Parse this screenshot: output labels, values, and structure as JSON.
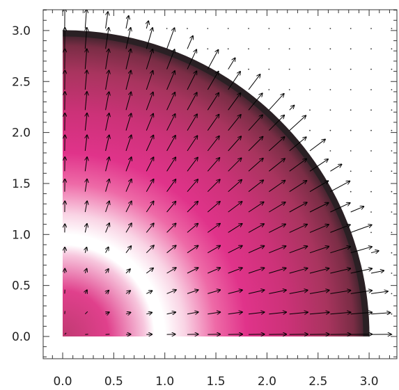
{
  "chart_data": {
    "type": "heatmap",
    "subtype": "quarter-disk color field with vector (arrow) overlay",
    "title": "",
    "xlabel": "",
    "ylabel": "",
    "xlim": [
      -0.2,
      3.25
    ],
    "ylim": [
      -0.2,
      3.25
    ],
    "x_ticks": [
      "0.0",
      "0.5",
      "1.0",
      "1.5",
      "2.0",
      "2.5",
      "3.0"
    ],
    "y_ticks": [
      "0.0",
      "0.5",
      "1.0",
      "1.5",
      "2.0",
      "2.5",
      "3.0"
    ],
    "x_tick_values": [
      0,
      0.5,
      1.0,
      1.5,
      2.0,
      2.5,
      3.0
    ],
    "y_tick_values": [
      0,
      0.5,
      1.0,
      1.5,
      2.0,
      2.5,
      3.0
    ],
    "domain_radius": 3.0,
    "color_field": {
      "description": "radial intensity of a quarter disk of radius 3",
      "radius_stops": [
        0.0,
        0.45,
        0.8,
        0.9,
        1.0,
        1.2,
        1.5,
        1.8,
        2.2,
        2.6,
        2.85,
        3.0
      ],
      "colors": [
        "#c03a72",
        "#e0408c",
        "#f7c6dd",
        "#ffffff",
        "#ffffff",
        "#f9d3e4",
        "#ee6aa7",
        "#e0338a",
        "#cc3278",
        "#a8345e",
        "#7a2d45",
        "#2a2024"
      ]
    },
    "vector_field": {
      "grid_spacing": 0.2,
      "direction": "radial outward",
      "description": "arrows grow outward with radius; tiny dots outside the disk",
      "magnitude_stops_radius": [
        0.0,
        0.9,
        1.1,
        2.0,
        3.0,
        3.2
      ],
      "magnitude_stops_value": [
        0.02,
        0.06,
        0.1,
        0.17,
        0.22,
        0.0
      ]
    },
    "grid": false,
    "legend": "none"
  }
}
